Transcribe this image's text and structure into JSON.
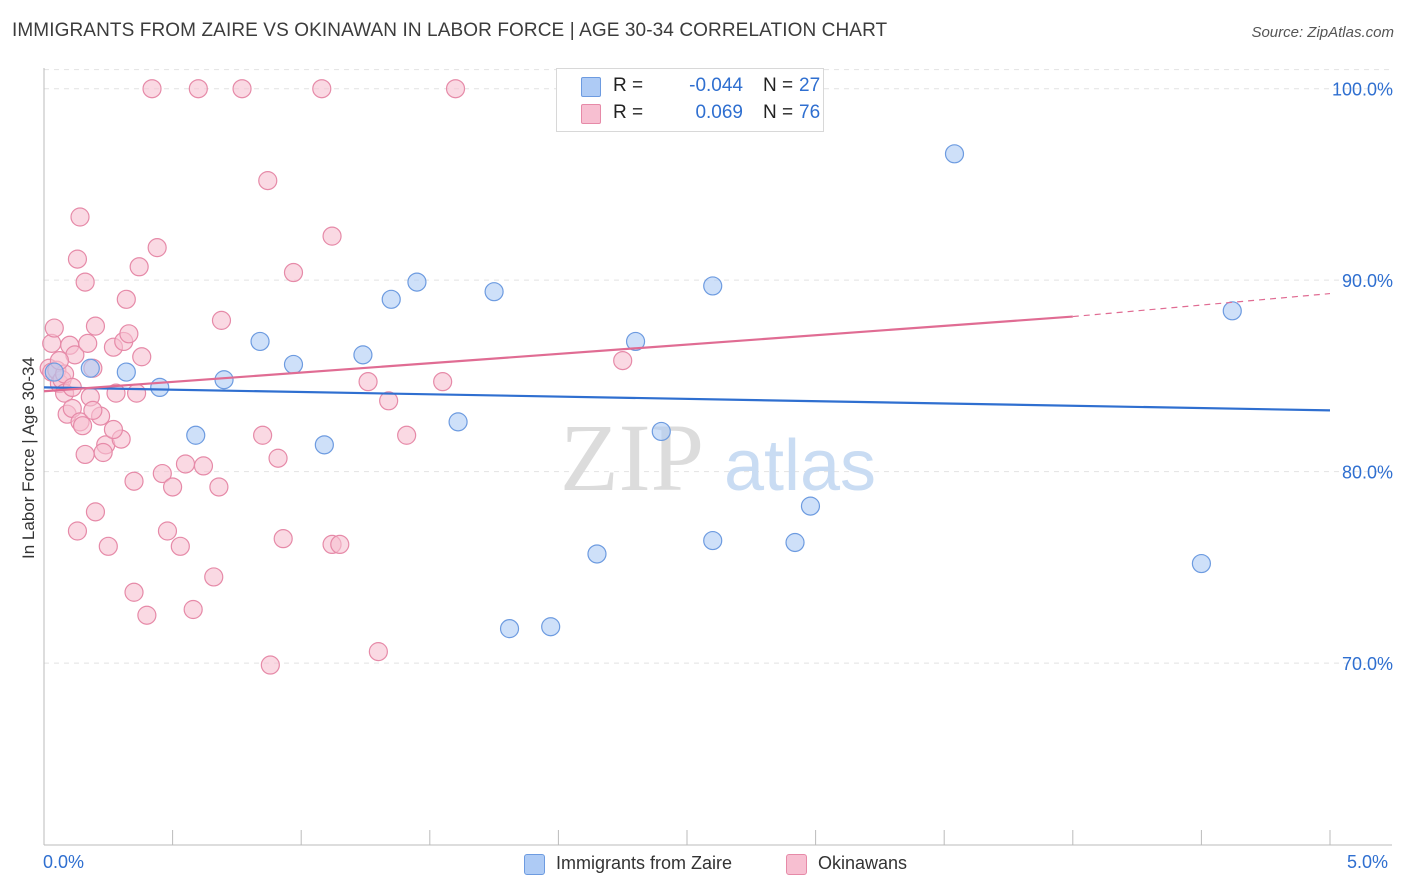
{
  "header": {
    "title": "IMMIGRANTS FROM ZAIRE VS OKINAWAN IN LABOR FORCE | AGE 30-34 CORRELATION CHART",
    "source": "Source: ZipAtlas.com"
  },
  "watermark": {
    "zip": "ZIP",
    "atlas": "atlas"
  },
  "legend": {
    "rows": [
      {
        "r_label": "R =",
        "r_value": "-0.044",
        "n_label": "N =",
        "n_value": "27",
        "color": "#aecbf5"
      },
      {
        "r_label": "R =",
        "r_value": "0.069",
        "n_label": "N =",
        "n_value": "76",
        "color": "#f7bfd1"
      }
    ]
  },
  "bottom_legend": {
    "series_a": "Immigrants from Zaire",
    "series_b": "Okinawans"
  },
  "chart_data": {
    "type": "scatter",
    "title": "IMMIGRANTS FROM ZAIRE VS OKINAWAN IN LABOR FORCE | AGE 30-34 CORRELATION CHART",
    "xlabel": "",
    "ylabel": "In Labor Force | Age 30-34",
    "xlim": [
      0,
      5.0
    ],
    "ylim": [
      60.5,
      101.5
    ],
    "x_tick_labels": [
      "0.0%",
      "5.0%"
    ],
    "y_ticks": [
      70,
      80,
      90,
      100
    ],
    "y_tick_labels": [
      "70.0%",
      "80.0%",
      "90.0%",
      "100.0%"
    ],
    "grid": true,
    "legend_position": "top-center",
    "colors": {
      "zaire_fill": "#aecbf5",
      "zaire_edge": "#6d9be0",
      "zaire_line": "#2f6fd0",
      "okinawan_fill": "#f7bfd1",
      "okinawan_edge": "#e68aa8",
      "okinawan_line": "#e06c93",
      "tick_label": "#2f6fd0",
      "grid": "#e2e2e2"
    },
    "series": [
      {
        "name": "Immigrants from Zaire",
        "points": [
          [
            0.04,
            85.2
          ],
          [
            0.18,
            85.4
          ],
          [
            0.32,
            85.2
          ],
          [
            0.45,
            84.4
          ],
          [
            0.59,
            81.9
          ],
          [
            0.7,
            84.8
          ],
          [
            0.84,
            86.8
          ],
          [
            0.97,
            85.6
          ],
          [
            1.09,
            81.4
          ],
          [
            1.24,
            86.1
          ],
          [
            1.35,
            89.0
          ],
          [
            1.45,
            89.9
          ],
          [
            1.61,
            82.6
          ],
          [
            1.75,
            89.4
          ],
          [
            1.81,
            71.8
          ],
          [
            1.97,
            71.9
          ],
          [
            2.15,
            75.7
          ],
          [
            2.3,
            86.8
          ],
          [
            2.4,
            82.1
          ],
          [
            2.6,
            89.7
          ],
          [
            2.6,
            76.4
          ],
          [
            2.85,
            100.0
          ],
          [
            2.92,
            76.3
          ],
          [
            2.98,
            78.2
          ],
          [
            3.54,
            96.6
          ],
          [
            4.5,
            75.2
          ],
          [
            4.62,
            88.4
          ]
        ],
        "trend": {
          "x": [
            0,
            5.0
          ],
          "y": [
            84.4,
            83.2
          ]
        }
      },
      {
        "name": "Okinawans",
        "points": [
          [
            0.02,
            85.4
          ],
          [
            0.03,
            86.7
          ],
          [
            0.03,
            85.2
          ],
          [
            0.04,
            87.5
          ],
          [
            0.05,
            85.3
          ],
          [
            0.06,
            84.6
          ],
          [
            0.07,
            84.8
          ],
          [
            0.08,
            85.1
          ],
          [
            0.08,
            84.1
          ],
          [
            0.09,
            83.0
          ],
          [
            0.1,
            86.6
          ],
          [
            0.11,
            83.3
          ],
          [
            0.12,
            86.1
          ],
          [
            0.13,
            76.9
          ],
          [
            0.13,
            91.1
          ],
          [
            0.14,
            93.3
          ],
          [
            0.14,
            82.6
          ],
          [
            0.15,
            82.4
          ],
          [
            0.16,
            80.9
          ],
          [
            0.16,
            89.9
          ],
          [
            0.17,
            86.7
          ],
          [
            0.18,
            83.9
          ],
          [
            0.19,
            85.4
          ],
          [
            0.2,
            87.6
          ],
          [
            0.2,
            77.9
          ],
          [
            0.22,
            82.9
          ],
          [
            0.24,
            81.4
          ],
          [
            0.25,
            76.1
          ],
          [
            0.27,
            86.5
          ],
          [
            0.28,
            84.1
          ],
          [
            0.3,
            81.7
          ],
          [
            0.31,
            86.8
          ],
          [
            0.32,
            89.0
          ],
          [
            0.33,
            87.2
          ],
          [
            0.35,
            73.7
          ],
          [
            0.36,
            84.1
          ],
          [
            0.37,
            90.7
          ],
          [
            0.38,
            86.0
          ],
          [
            0.4,
            72.5
          ],
          [
            0.42,
            100.0
          ],
          [
            0.44,
            91.7
          ],
          [
            0.46,
            79.9
          ],
          [
            0.48,
            76.9
          ],
          [
            0.5,
            79.2
          ],
          [
            0.53,
            76.1
          ],
          [
            0.55,
            80.4
          ],
          [
            0.58,
            72.8
          ],
          [
            0.6,
            100.0
          ],
          [
            0.62,
            80.3
          ],
          [
            0.66,
            74.5
          ],
          [
            0.68,
            79.2
          ],
          [
            0.69,
            87.9
          ],
          [
            0.77,
            100.0
          ],
          [
            0.85,
            81.9
          ],
          [
            0.87,
            95.2
          ],
          [
            0.88,
            69.9
          ],
          [
            0.91,
            80.7
          ],
          [
            0.93,
            76.5
          ],
          [
            0.97,
            90.4
          ],
          [
            1.08,
            100.0
          ],
          [
            1.12,
            76.2
          ],
          [
            1.12,
            92.3
          ],
          [
            1.15,
            76.2
          ],
          [
            1.26,
            84.7
          ],
          [
            1.3,
            70.6
          ],
          [
            1.34,
            83.7
          ],
          [
            1.41,
            81.9
          ],
          [
            1.55,
            84.7
          ],
          [
            1.6,
            100.0
          ],
          [
            2.25,
            85.8
          ],
          [
            0.27,
            82.2
          ],
          [
            0.19,
            83.2
          ],
          [
            0.11,
            84.4
          ],
          [
            0.06,
            85.8
          ],
          [
            0.23,
            81.0
          ],
          [
            0.35,
            79.5
          ]
        ],
        "trend": {
          "x": [
            0,
            4.0
          ],
          "y": [
            84.2,
            88.1
          ],
          "dashed_extension": {
            "x": [
              4.0,
              5.0
            ],
            "y": [
              88.1,
              89.3
            ]
          }
        }
      }
    ]
  }
}
